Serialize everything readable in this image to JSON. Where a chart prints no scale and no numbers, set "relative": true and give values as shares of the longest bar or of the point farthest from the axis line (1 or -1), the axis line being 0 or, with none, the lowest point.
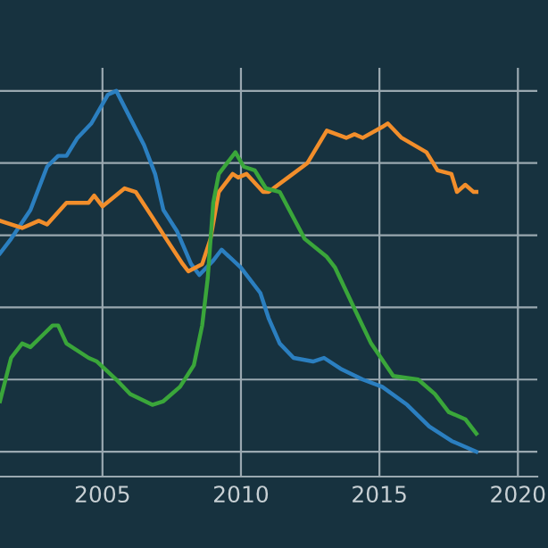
{
  "chart_data": {
    "type": "line",
    "relative": true,
    "grid": true,
    "tick_labels": "x",
    "line_style": "solid",
    "xlim": [
      2001.3,
      2020.7
    ],
    "xticks": [
      2005,
      2010,
      2015,
      2020
    ],
    "series": [
      {
        "color": "#2b7fc0",
        "x": [
          2001.3,
          2001.7,
          2002.4,
          2003.0,
          2003.4,
          2003.7,
          2004.1,
          2004.6,
          2005.2,
          2005.5,
          2005.9,
          2006.5,
          2006.9,
          2007.2,
          2007.7,
          2008.2,
          2008.5,
          2009.0,
          2009.3,
          2010.0,
          2010.7,
          2011.0,
          2011.4,
          2011.9,
          2012.6,
          2013.0,
          2013.6,
          2014.4,
          2015.1,
          2016.0,
          2016.8,
          2017.6,
          2018.5
        ],
        "values": [
          0.55,
          0.59,
          0.67,
          0.79,
          0.82,
          0.82,
          0.87,
          0.91,
          0.99,
          1.0,
          0.94,
          0.85,
          0.77,
          0.67,
          0.61,
          0.52,
          0.49,
          0.53,
          0.56,
          0.51,
          0.44,
          0.37,
          0.3,
          0.26,
          0.25,
          0.26,
          0.23,
          0.2,
          0.18,
          0.13,
          0.07,
          0.03,
          0.0
        ]
      },
      {
        "color": "#f28e2b",
        "x": [
          2001.3,
          2002.1,
          2002.7,
          2003.0,
          2003.7,
          2004.5,
          2004.7,
          2005.0,
          2005.8,
          2006.2,
          2006.8,
          2007.3,
          2007.9,
          2008.1,
          2008.6,
          2008.9,
          2009.2,
          2009.7,
          2009.9,
          2010.2,
          2010.8,
          2011.0,
          2011.7,
          2012.4,
          2013.1,
          2013.8,
          2014.1,
          2014.4,
          2015.1,
          2015.3,
          2015.8,
          2016.7,
          2017.1,
          2017.6,
          2017.8,
          2018.1,
          2018.4,
          2018.5
        ],
        "values": [
          0.64,
          0.62,
          0.64,
          0.63,
          0.69,
          0.69,
          0.71,
          0.68,
          0.73,
          0.72,
          0.65,
          0.59,
          0.52,
          0.5,
          0.52,
          0.59,
          0.72,
          0.77,
          0.76,
          0.77,
          0.72,
          0.72,
          0.76,
          0.8,
          0.89,
          0.87,
          0.88,
          0.87,
          0.9,
          0.91,
          0.87,
          0.83,
          0.78,
          0.77,
          0.72,
          0.74,
          0.72,
          0.72
        ]
      },
      {
        "color": "#3aa63a",
        "x": [
          2001.3,
          2001.7,
          2002.1,
          2002.4,
          2002.8,
          2003.2,
          2003.4,
          2003.7,
          2004.5,
          2004.8,
          2005.5,
          2006.0,
          2006.8,
          2007.2,
          2007.8,
          2008.3,
          2008.6,
          2008.8,
          2009.0,
          2009.2,
          2009.8,
          2010.1,
          2010.5,
          2010.9,
          2011.4,
          2012.3,
          2013.1,
          2013.4,
          2014.2,
          2014.7,
          2015.5,
          2016.4,
          2017.0,
          2017.5,
          2018.1,
          2018.5
        ],
        "values": [
          0.14,
          0.26,
          0.3,
          0.29,
          0.32,
          0.35,
          0.35,
          0.3,
          0.26,
          0.25,
          0.2,
          0.16,
          0.13,
          0.14,
          0.18,
          0.24,
          0.35,
          0.48,
          0.69,
          0.77,
          0.83,
          0.79,
          0.78,
          0.73,
          0.72,
          0.59,
          0.54,
          0.51,
          0.38,
          0.3,
          0.21,
          0.2,
          0.16,
          0.11,
          0.09,
          0.05
        ]
      }
    ]
  }
}
